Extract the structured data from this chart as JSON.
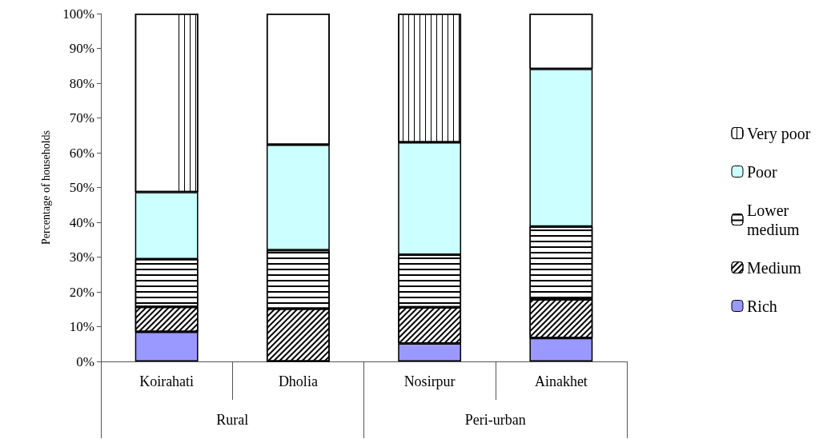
{
  "chart_data": {
    "type": "bar",
    "stacked": true,
    "ylabel": "Percentage of households",
    "categories": [
      "Koirahati",
      "Dholia",
      "Nosirpur",
      "Ainakhet"
    ],
    "annotations": [
      "Rural",
      "Peri-urban"
    ],
    "series": [
      {
        "name": "Rich",
        "color": "#9999ff",
        "values": [
          8.5,
          0,
          5.2,
          6.7
        ]
      },
      {
        "name": "Medium",
        "color": "#ffffff",
        "values": [
          7.2,
          15.2,
          10.4,
          11.2
        ]
      },
      {
        "name": "Lower medium",
        "color": "#ffffff",
        "values": [
          13.7,
          16.8,
          15.1,
          20.9
        ]
      },
      {
        "name": "Poor",
        "color": "#ccffff",
        "values": [
          19.3,
          30.3,
          32.3,
          45.3
        ]
      },
      {
        "name": "Very poor",
        "color": "#ffffff",
        "values": [
          51.3,
          37.7,
          37.0,
          15.9
        ]
      }
    ],
    "ylim": [
      0,
      100
    ],
    "yticks": [
      {
        "value": 0,
        "label": "0%"
      },
      {
        "value": 10,
        "label": "10%"
      },
      {
        "value": 20,
        "label": "20%"
      },
      {
        "value": 30,
        "label": "30%"
      },
      {
        "value": 40,
        "label": "40%"
      },
      {
        "value": 50,
        "label": "50%"
      },
      {
        "value": 60,
        "label": "60%"
      },
      {
        "value": 70,
        "label": "70%"
      },
      {
        "value": 80,
        "label": "80%"
      },
      {
        "value": 90,
        "label": "90%"
      },
      {
        "value": 100,
        "label": "100%"
      }
    ],
    "grid": false,
    "legend": "right"
  }
}
